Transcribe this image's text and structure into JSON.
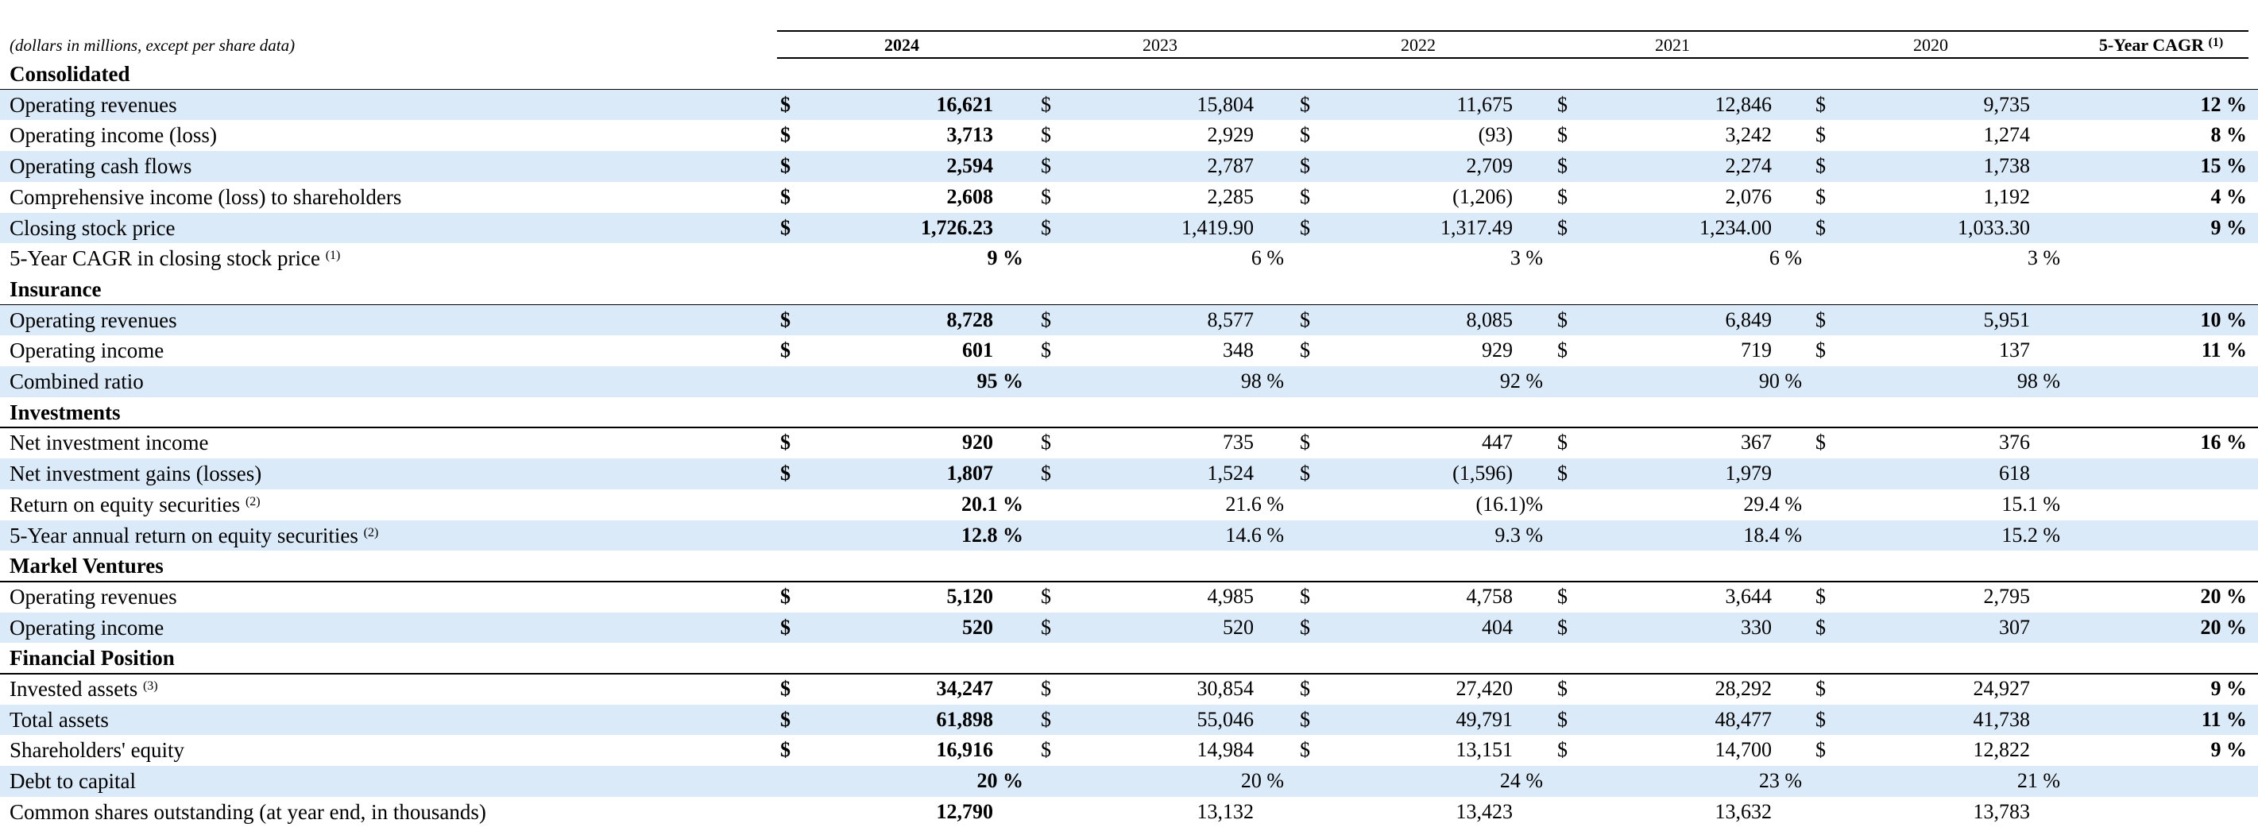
{
  "header": {
    "units_note": "(dollars in millions, except per share data)",
    "columns": [
      "2024",
      "2023",
      "2022",
      "2021",
      "2020"
    ],
    "cagr_header": "5-Year CAGR",
    "cagr_header_note": "(1)"
  },
  "currency_symbol": "$",
  "sections": [
    {
      "title": "Consolidated",
      "rows": [
        {
          "label": "Operating revenues",
          "note": "",
          "dollar": true,
          "values": [
            "16,621",
            "15,804",
            "11,675",
            "12,846",
            "9,735"
          ],
          "cagr": "12 %"
        },
        {
          "label": "Operating income (loss)",
          "note": "",
          "dollar": true,
          "values": [
            "3,713",
            "2,929",
            "(93)",
            "3,242",
            "1,274"
          ],
          "cagr": "8 %"
        },
        {
          "label": "Operating cash flows",
          "note": "",
          "dollar": true,
          "values": [
            "2,594",
            "2,787",
            "2,709",
            "2,274",
            "1,738"
          ],
          "cagr": "15 %"
        },
        {
          "label": "Comprehensive income (loss) to shareholders",
          "note": "",
          "dollar": true,
          "values": [
            "2,608",
            "2,285",
            "(1,206)",
            "2,076",
            "1,192"
          ],
          "cagr": "4 %"
        },
        {
          "label": "Closing stock price",
          "note": "",
          "dollar": true,
          "values": [
            "1,726.23",
            "1,419.90",
            "1,317.49",
            "1,234.00",
            "1,033.30"
          ],
          "cagr": "9 %"
        },
        {
          "label": "5-Year CAGR in closing stock price",
          "note": "(1)",
          "dollar": false,
          "values": [
            "9 %",
            "6 %",
            "3 %",
            "6 %",
            "3 %"
          ],
          "cagr": ""
        }
      ]
    },
    {
      "title": "Insurance",
      "rows": [
        {
          "label": "Operating revenues",
          "note": "",
          "dollar": true,
          "values": [
            "8,728",
            "8,577",
            "8,085",
            "6,849",
            "5,951"
          ],
          "cagr": "10 %"
        },
        {
          "label": "Operating income",
          "note": "",
          "dollar": true,
          "values": [
            "601",
            "348",
            "929",
            "719",
            "137"
          ],
          "cagr": "11 %"
        },
        {
          "label": "Combined ratio",
          "note": "",
          "dollar": false,
          "values": [
            "95 %",
            "98 %",
            "92 %",
            "90 %",
            "98 %"
          ],
          "cagr": ""
        }
      ]
    },
    {
      "title": "Investments",
      "rows": [
        {
          "label": "Net investment income",
          "note": "",
          "dollar": true,
          "values": [
            "920",
            "735",
            "447",
            "367",
            "376"
          ],
          "cagr": "16 %"
        },
        {
          "label": "Net investment gains (losses)",
          "note": "",
          "dollar": true,
          "dollar_cols": 4,
          "values": [
            "1,807",
            "1,524",
            "(1,596)",
            "1,979",
            "618"
          ],
          "cagr": ""
        },
        {
          "label": "Return on equity securities",
          "note": "(2)",
          "dollar": false,
          "values": [
            "20.1 %",
            "21.6 %",
            "(16.1)%",
            "29.4 %",
            "15.1 %"
          ],
          "cagr": ""
        },
        {
          "label": "5-Year annual return on equity securities",
          "note": "(2)",
          "dollar": false,
          "values": [
            "12.8 %",
            "14.6 %",
            "9.3 %",
            "18.4 %",
            "15.2 %"
          ],
          "cagr": ""
        }
      ]
    },
    {
      "title": "Markel Ventures",
      "rows": [
        {
          "label": "Operating revenues",
          "note": "",
          "dollar": true,
          "values": [
            "5,120",
            "4,985",
            "4,758",
            "3,644",
            "2,795"
          ],
          "cagr": "20 %"
        },
        {
          "label": "Operating income",
          "note": "",
          "dollar": true,
          "values": [
            "520",
            "520",
            "404",
            "330",
            "307"
          ],
          "cagr": "20 %"
        }
      ]
    },
    {
      "title": "Financial Position",
      "rows": [
        {
          "label": "Invested assets",
          "note": "(3)",
          "dollar": true,
          "values": [
            "34,247",
            "30,854",
            "27,420",
            "28,292",
            "24,927"
          ],
          "cagr": "9 %"
        },
        {
          "label": "Total assets",
          "note": "",
          "dollar": true,
          "values": [
            "61,898",
            "55,046",
            "49,791",
            "48,477",
            "41,738"
          ],
          "cagr": "11 %"
        },
        {
          "label": "Shareholders' equity",
          "note": "",
          "dollar": true,
          "values": [
            "16,916",
            "14,984",
            "13,151",
            "14,700",
            "12,822"
          ],
          "cagr": "9 %"
        },
        {
          "label": "Debt to capital",
          "note": "",
          "dollar": false,
          "values": [
            "20 %",
            "20 %",
            "24 %",
            "23 %",
            "21 %"
          ],
          "cagr": ""
        },
        {
          "label": "Common shares outstanding (at year end, in thousands)",
          "note": "",
          "dollar": false,
          "values": [
            "12,790",
            "13,132",
            "13,423",
            "13,632",
            "13,783"
          ],
          "cagr": ""
        }
      ]
    }
  ]
}
